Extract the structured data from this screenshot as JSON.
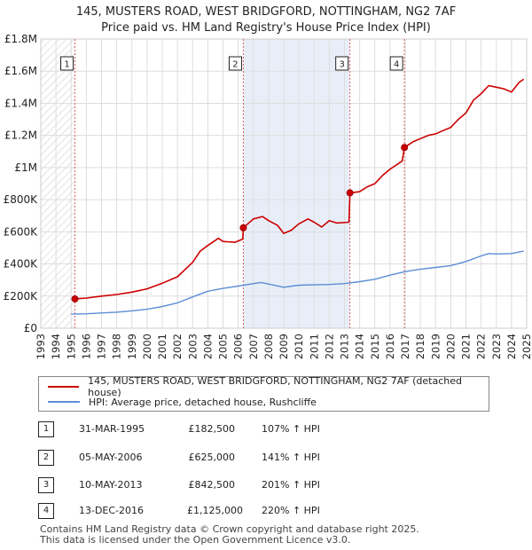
{
  "title_line1": "145, MUSTERS ROAD, WEST BRIDGFORD, NOTTINGHAM, NG2 7AF",
  "title_line2": "Price paid vs. HM Land Registry's House Price Index (HPI)",
  "colors": {
    "property": "#cc0000",
    "hpi": "#5b8ed6",
    "shade": "#e8eef8"
  },
  "chart_data": {
    "type": "line",
    "xlim": [
      1993,
      2025
    ],
    "ylim": [
      0,
      1800000
    ],
    "y_ticks": [
      {
        "value": 0,
        "label": "£0"
      },
      {
        "value": 200000,
        "label": "£200K"
      },
      {
        "value": 400000,
        "label": "£400K"
      },
      {
        "value": 600000,
        "label": "£600K"
      },
      {
        "value": 800000,
        "label": "£800K"
      },
      {
        "value": 1000000,
        "label": "£1M"
      },
      {
        "value": 1200000,
        "label": "£1.2M"
      },
      {
        "value": 1400000,
        "label": "£1.4M"
      },
      {
        "value": 1600000,
        "label": "£1.6M"
      },
      {
        "value": 1800000,
        "label": "£1.8M"
      }
    ],
    "x_ticks": [
      "1993",
      "1994",
      "1995",
      "1996",
      "1997",
      "1998",
      "1999",
      "2000",
      "2001",
      "2002",
      "2003",
      "2004",
      "2005",
      "2006",
      "2007",
      "2008",
      "2009",
      "2010",
      "2011",
      "2012",
      "2013",
      "2014",
      "2015",
      "2016",
      "2017",
      "2018",
      "2019",
      "2020",
      "2021",
      "2022",
      "2023",
      "2024",
      "2025"
    ],
    "hatched_region": [
      1993,
      1995.25
    ],
    "shaded_regions": [
      [
        2006.34,
        2013.36
      ]
    ],
    "sales": [
      {
        "label": "1",
        "x": 1995.25,
        "y": 182500
      },
      {
        "label": "2",
        "x": 2006.34,
        "y": 625000
      },
      {
        "label": "3",
        "x": 2013.36,
        "y": 842500
      },
      {
        "label": "4",
        "x": 2016.95,
        "y": 1125000
      }
    ],
    "series": [
      {
        "name": "145, MUSTERS ROAD, WEST BRIDGFORD, NOTTINGHAM, NG2 7AF (detached house)",
        "color": "#cc0000",
        "points": [
          [
            1995.25,
            182500
          ],
          [
            1996,
            188000
          ],
          [
            1997,
            200000
          ],
          [
            1998,
            210000
          ],
          [
            1999,
            225000
          ],
          [
            2000,
            245000
          ],
          [
            2001,
            280000
          ],
          [
            2002,
            320000
          ],
          [
            2003,
            410000
          ],
          [
            2003.5,
            480000
          ],
          [
            2004,
            515000
          ],
          [
            2004.7,
            560000
          ],
          [
            2005,
            540000
          ],
          [
            2005.8,
            535000
          ],
          [
            2006.3,
            555000
          ],
          [
            2006.34,
            625000
          ],
          [
            2007,
            680000
          ],
          [
            2007.6,
            695000
          ],
          [
            2008,
            670000
          ],
          [
            2008.6,
            640000
          ],
          [
            2009,
            590000
          ],
          [
            2009.5,
            610000
          ],
          [
            2010,
            650000
          ],
          [
            2010.6,
            680000
          ],
          [
            2011,
            660000
          ],
          [
            2011.5,
            630000
          ],
          [
            2012,
            670000
          ],
          [
            2012.5,
            655000
          ],
          [
            2013.3,
            660000
          ],
          [
            2013.36,
            842500
          ],
          [
            2014,
            850000
          ],
          [
            2014.5,
            880000
          ],
          [
            2015,
            900000
          ],
          [
            2015.5,
            950000
          ],
          [
            2016,
            990000
          ],
          [
            2016.8,
            1040000
          ],
          [
            2016.95,
            1125000
          ],
          [
            2017.5,
            1160000
          ],
          [
            2018,
            1180000
          ],
          [
            2018.5,
            1200000
          ],
          [
            2019,
            1210000
          ],
          [
            2019.5,
            1230000
          ],
          [
            2020,
            1250000
          ],
          [
            2020.5,
            1300000
          ],
          [
            2021,
            1340000
          ],
          [
            2021.5,
            1420000
          ],
          [
            2022,
            1460000
          ],
          [
            2022.5,
            1510000
          ],
          [
            2023,
            1500000
          ],
          [
            2023.5,
            1490000
          ],
          [
            2024,
            1470000
          ],
          [
            2024.5,
            1530000
          ],
          [
            2024.8,
            1550000
          ]
        ]
      },
      {
        "name": "HPI: Average price, detached house, Rushcliffe",
        "color": "#5b8ed6",
        "points": [
          [
            1995,
            88000
          ],
          [
            1996,
            90000
          ],
          [
            1997,
            95000
          ],
          [
            1998,
            100000
          ],
          [
            1999,
            108000
          ],
          [
            2000,
            118000
          ],
          [
            2001,
            135000
          ],
          [
            2002,
            158000
          ],
          [
            2003,
            195000
          ],
          [
            2004,
            230000
          ],
          [
            2005,
            248000
          ],
          [
            2006,
            262000
          ],
          [
            2007,
            278000
          ],
          [
            2007.5,
            285000
          ],
          [
            2008,
            275000
          ],
          [
            2009,
            255000
          ],
          [
            2010,
            268000
          ],
          [
            2011,
            270000
          ],
          [
            2012,
            272000
          ],
          [
            2013,
            278000
          ],
          [
            2014,
            290000
          ],
          [
            2015,
            305000
          ],
          [
            2016,
            330000
          ],
          [
            2017,
            352000
          ],
          [
            2018,
            368000
          ],
          [
            2019,
            378000
          ],
          [
            2020,
            390000
          ],
          [
            2021,
            415000
          ],
          [
            2022,
            450000
          ],
          [
            2022.5,
            465000
          ],
          [
            2023,
            462000
          ],
          [
            2024,
            465000
          ],
          [
            2024.8,
            480000
          ]
        ]
      }
    ]
  },
  "legend": [
    {
      "label": "145, MUSTERS ROAD, WEST BRIDGFORD, NOTTINGHAM, NG2 7AF (detached house)",
      "color": "#cc0000"
    },
    {
      "label": "HPI: Average price, detached house, Rushcliffe",
      "color": "#5b8ed6"
    }
  ],
  "transactions": [
    {
      "num": "1",
      "date": "31-MAR-1995",
      "price": "£182,500",
      "hpi": "107% ↑ HPI"
    },
    {
      "num": "2",
      "date": "05-MAY-2006",
      "price": "£625,000",
      "hpi": "141% ↑ HPI"
    },
    {
      "num": "3",
      "date": "10-MAY-2013",
      "price": "£842,500",
      "hpi": "201% ↑ HPI"
    },
    {
      "num": "4",
      "date": "13-DEC-2016",
      "price": "£1,125,000",
      "hpi": "220% ↑ HPI"
    }
  ],
  "footer_line1": "Contains HM Land Registry data © Crown copyright and database right 2025.",
  "footer_line2": "This data is licensed under the Open Government Licence v3.0."
}
